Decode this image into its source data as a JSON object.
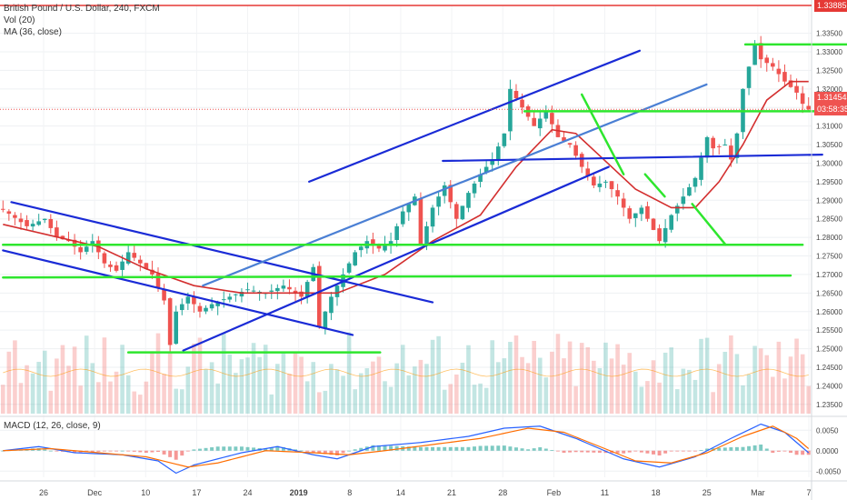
{
  "legend": {
    "symbol": "British Pound / U.S. Dollar, 240, FXCM",
    "vol": "Vol (20)",
    "ma": "MA (36, close)",
    "macd": "MACD (12, 26, close, 9)"
  },
  "price_tags": {
    "top": "1.33885",
    "current": "1.31454",
    "countdown": "03:58:35",
    "top_color": "#e53935",
    "current_color": "#ef5350"
  },
  "colors": {
    "up": "#26a69a",
    "down": "#ef5350",
    "ma": "#d32f2f",
    "trend_blue": "#1a2bd6",
    "trend_lightblue": "#4a7fd4",
    "support_green": "#2ee62e",
    "macd_line": "#2962ff",
    "signal_line": "#ff6d00"
  },
  "chart_data": [
    {
      "type": "candlestick",
      "title": "British Pound / U.S. Dollar, 240, FXCM",
      "y_ticks": [
        "1.33500",
        "1.33000",
        "1.32500",
        "1.32000",
        "1.31500",
        "1.31000",
        "1.30500",
        "1.30000",
        "1.29500",
        "1.29000",
        "1.28500",
        "1.28000",
        "1.27500",
        "1.27000",
        "1.26500",
        "1.26000",
        "1.25500",
        "1.25000",
        "1.24500",
        "1.24000",
        "1.23500"
      ],
      "x_ticks": [
        "26",
        "Dec",
        "10",
        "17",
        "24",
        "2019",
        "8",
        "14",
        "21",
        "28",
        "Feb",
        "11",
        "18",
        "25",
        "Mar",
        "7"
      ],
      "ylim": [
        1.2325,
        1.3425
      ],
      "close_path": [
        {
          "t": 0,
          "p": 1.2875
        },
        {
          "t": 4,
          "p": 1.283
        },
        {
          "t": 7,
          "p": 1.285
        },
        {
          "t": 9,
          "p": 1.28
        },
        {
          "t": 11,
          "p": 1.279
        },
        {
          "t": 13,
          "p": 1.276
        },
        {
          "t": 15,
          "p": 1.279
        },
        {
          "t": 17,
          "p": 1.273
        },
        {
          "t": 19,
          "p": 1.271
        },
        {
          "t": 21,
          "p": 1.276
        },
        {
          "t": 23,
          "p": 1.273
        },
        {
          "t": 25,
          "p": 1.27
        },
        {
          "t": 27,
          "p": 1.263
        },
        {
          "t": 28,
          "p": 1.251
        },
        {
          "t": 29,
          "p": 1.26
        },
        {
          "t": 31,
          "p": 1.264
        },
        {
          "t": 33,
          "p": 1.26
        },
        {
          "t": 35,
          "p": 1.262
        },
        {
          "t": 38,
          "p": 1.264
        },
        {
          "t": 41,
          "p": 1.266
        },
        {
          "t": 44,
          "p": 1.265
        },
        {
          "t": 47,
          "p": 1.267
        },
        {
          "t": 50,
          "p": 1.264
        },
        {
          "t": 52,
          "p": 1.272
        },
        {
          "t": 53,
          "p": 1.256
        },
        {
          "t": 55,
          "p": 1.264
        },
        {
          "t": 57,
          "p": 1.27
        },
        {
          "t": 59,
          "p": 1.276
        },
        {
          "t": 61,
          "p": 1.279
        },
        {
          "t": 63,
          "p": 1.277
        },
        {
          "t": 65,
          "p": 1.279
        },
        {
          "t": 67,
          "p": 1.287
        },
        {
          "t": 69,
          "p": 1.291
        },
        {
          "t": 70,
          "p": 1.278
        },
        {
          "t": 72,
          "p": 1.288
        },
        {
          "t": 74,
          "p": 1.294
        },
        {
          "t": 76,
          "p": 1.285
        },
        {
          "t": 78,
          "p": 1.292
        },
        {
          "t": 80,
          "p": 1.297
        },
        {
          "t": 82,
          "p": 1.301
        },
        {
          "t": 84,
          "p": 1.308
        },
        {
          "t": 85,
          "p": 1.32
        },
        {
          "t": 87,
          "p": 1.315
        },
        {
          "t": 89,
          "p": 1.31
        },
        {
          "t": 91,
          "p": 1.314
        },
        {
          "t": 93,
          "p": 1.307
        },
        {
          "t": 95,
          "p": 1.305
        },
        {
          "t": 97,
          "p": 1.299
        },
        {
          "t": 99,
          "p": 1.294
        },
        {
          "t": 101,
          "p": 1.295
        },
        {
          "t": 103,
          "p": 1.291
        },
        {
          "t": 105,
          "p": 1.285
        },
        {
          "t": 107,
          "p": 1.288
        },
        {
          "t": 109,
          "p": 1.282
        },
        {
          "t": 110,
          "p": 1.279
        },
        {
          "t": 112,
          "p": 1.286
        },
        {
          "t": 114,
          "p": 1.291
        },
        {
          "t": 116,
          "p": 1.296
        },
        {
          "t": 118,
          "p": 1.307
        },
        {
          "t": 119,
          "p": 1.304
        },
        {
          "t": 121,
          "p": 1.305
        },
        {
          "t": 122,
          "p": 1.301
        },
        {
          "t": 123,
          "p": 1.308
        },
        {
          "t": 124,
          "p": 1.32
        },
        {
          "t": 125,
          "p": 1.326
        },
        {
          "t": 126,
          "p": 1.332
        },
        {
          "t": 127,
          "p": 1.328
        },
        {
          "t": 129,
          "p": 1.326
        },
        {
          "t": 131,
          "p": 1.322
        },
        {
          "t": 133,
          "p": 1.319
        },
        {
          "t": 134,
          "p": 1.316
        },
        {
          "t": 135,
          "p": 1.3145
        }
      ],
      "ma_path": [
        {
          "t": 0,
          "p": 1.2835
        },
        {
          "t": 8,
          "p": 1.2805
        },
        {
          "t": 16,
          "p": 1.2775
        },
        {
          "t": 24,
          "p": 1.2715
        },
        {
          "t": 32,
          "p": 1.267
        },
        {
          "t": 40,
          "p": 1.265
        },
        {
          "t": 48,
          "p": 1.265
        },
        {
          "t": 56,
          "p": 1.265
        },
        {
          "t": 64,
          "p": 1.27
        },
        {
          "t": 72,
          "p": 1.279
        },
        {
          "t": 80,
          "p": 1.286
        },
        {
          "t": 86,
          "p": 1.299
        },
        {
          "t": 92,
          "p": 1.309
        },
        {
          "t": 96,
          "p": 1.308
        },
        {
          "t": 100,
          "p": 1.302
        },
        {
          "t": 106,
          "p": 1.293
        },
        {
          "t": 112,
          "p": 1.288
        },
        {
          "t": 116,
          "p": 1.288
        },
        {
          "t": 120,
          "p": 1.295
        },
        {
          "t": 124,
          "p": 1.305
        },
        {
          "t": 128,
          "p": 1.317
        },
        {
          "t": 132,
          "p": 1.322
        },
        {
          "t": 135,
          "p": 1.322
        }
      ],
      "trend_lines": [
        {
          "kind": "blue",
          "from": [
            1.4,
            1.2895
          ],
          "to": [
            72,
            1.2625
          ]
        },
        {
          "kind": "blue",
          "from": [
            0,
            1.2765
          ],
          "to": [
            58.6,
            1.2537
          ]
        },
        {
          "kind": "blue",
          "from": [
            30.2,
            1.2495
          ],
          "to": [
            101.5,
            1.299
          ]
        },
        {
          "kind": "blue",
          "from": [
            51.3,
            1.295
          ],
          "to": [
            106.7,
            1.3303
          ]
        },
        {
          "kind": "blue",
          "from": [
            73.7,
            1.3006
          ],
          "to": [
            137.3,
            1.3023
          ]
        },
        {
          "kind": "lightblue",
          "from": [
            33.5,
            1.267
          ],
          "to": [
            117.9,
            1.3212
          ]
        },
        {
          "kind": "green",
          "from": [
            0,
            1.2692
          ],
          "to": [
            132,
            1.2697
          ]
        },
        {
          "kind": "green",
          "from": [
            0,
            1.278
          ],
          "to": [
            134,
            1.278
          ]
        },
        {
          "kind": "green",
          "from": [
            21,
            1.249
          ],
          "to": [
            63.2,
            1.249
          ]
        },
        {
          "kind": "green",
          "from": [
            87.4,
            1.314
          ],
          "to": [
            145,
            1.314
          ]
        },
        {
          "kind": "green",
          "from": [
            124.4,
            1.332
          ],
          "to": [
            143.5,
            1.332
          ]
        },
        {
          "kind": "green",
          "from": [
            97,
            1.3185
          ],
          "to": [
            104,
            1.297
          ]
        },
        {
          "kind": "green",
          "from": [
            107.6,
            1.297
          ],
          "to": [
            110.9,
            1.291
          ]
        },
        {
          "kind": "green",
          "from": [
            115.5,
            1.289
          ],
          "to": [
            121.1,
            1.278
          ]
        }
      ]
    },
    {
      "type": "line",
      "title": "MACD (12, 26, close, 9)",
      "y_ticks": [
        "0.0050",
        "0.0000",
        "-0.0050"
      ],
      "ylim": [
        -0.0065,
        0.0075
      ],
      "series": [
        {
          "name": "MACD",
          "values": [
            {
              "t": 0,
              "v": 0.0
            },
            {
              "t": 6,
              "v": 0.001
            },
            {
              "t": 12,
              "v": -0.0005
            },
            {
              "t": 20,
              "v": -0.001
            },
            {
              "t": 26,
              "v": -0.0025
            },
            {
              "t": 29,
              "v": -0.0055
            },
            {
              "t": 32,
              "v": -0.0035
            },
            {
              "t": 40,
              "v": -0.0005
            },
            {
              "t": 46,
              "v": 0.001
            },
            {
              "t": 52,
              "v": -0.001
            },
            {
              "t": 56,
              "v": -0.002
            },
            {
              "t": 62,
              "v": 0.001
            },
            {
              "t": 70,
              "v": 0.002
            },
            {
              "t": 78,
              "v": 0.0035
            },
            {
              "t": 84,
              "v": 0.0055
            },
            {
              "t": 90,
              "v": 0.006
            },
            {
              "t": 96,
              "v": 0.003
            },
            {
              "t": 104,
              "v": -0.002
            },
            {
              "t": 110,
              "v": -0.004
            },
            {
              "t": 116,
              "v": -0.0015
            },
            {
              "t": 122,
              "v": 0.003
            },
            {
              "t": 127,
              "v": 0.0065
            },
            {
              "t": 131,
              "v": 0.0045
            },
            {
              "t": 135,
              "v": -0.0005
            }
          ]
        },
        {
          "name": "Signal",
          "values": [
            {
              "t": 0,
              "v": 0.0
            },
            {
              "t": 8,
              "v": 0.0005
            },
            {
              "t": 16,
              "v": -0.0005
            },
            {
              "t": 24,
              "v": -0.0015
            },
            {
              "t": 31,
              "v": -0.004
            },
            {
              "t": 36,
              "v": -0.003
            },
            {
              "t": 44,
              "v": 0.0
            },
            {
              "t": 52,
              "v": -0.0005
            },
            {
              "t": 58,
              "v": -0.001
            },
            {
              "t": 64,
              "v": 0.0
            },
            {
              "t": 72,
              "v": 0.0015
            },
            {
              "t": 80,
              "v": 0.003
            },
            {
              "t": 88,
              "v": 0.0055
            },
            {
              "t": 94,
              "v": 0.0045
            },
            {
              "t": 100,
              "v": 0.001
            },
            {
              "t": 106,
              "v": -0.0025
            },
            {
              "t": 112,
              "v": -0.003
            },
            {
              "t": 118,
              "v": -0.0005
            },
            {
              "t": 124,
              "v": 0.0035
            },
            {
              "t": 129,
              "v": 0.006
            },
            {
              "t": 133,
              "v": 0.003
            },
            {
              "t": 135,
              "v": 0.0005
            }
          ]
        }
      ]
    }
  ]
}
